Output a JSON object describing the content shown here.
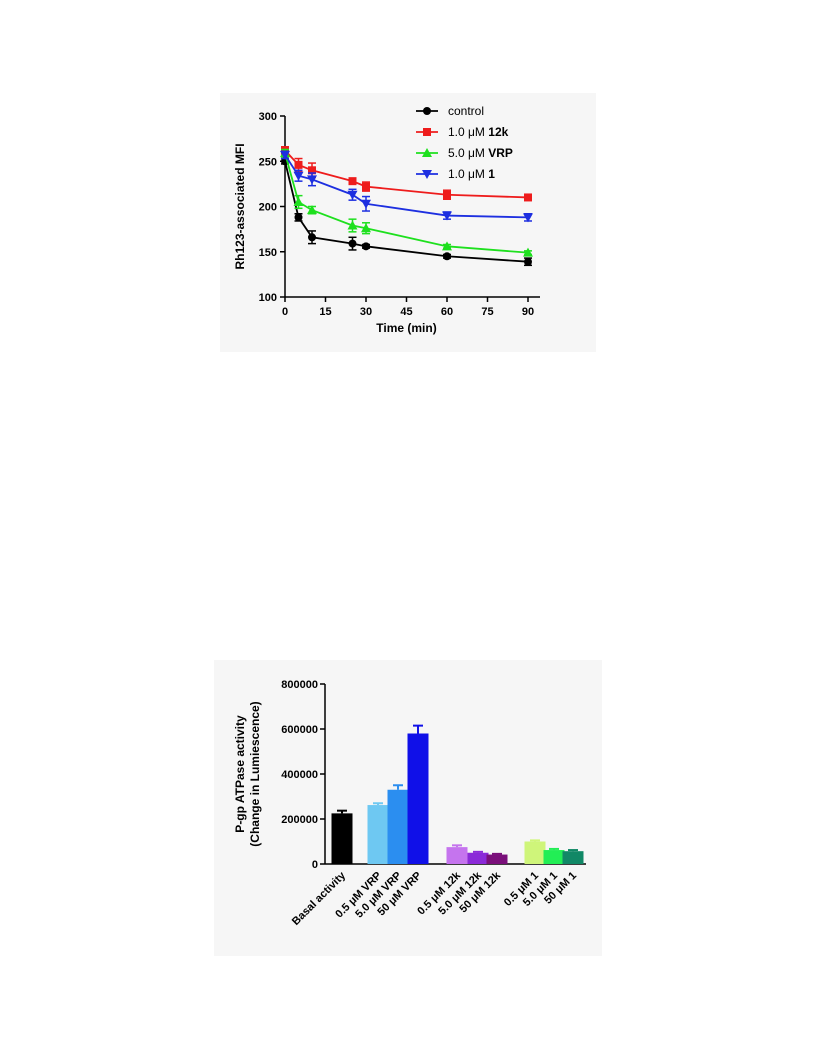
{
  "chart_data": [
    {
      "type": "line",
      "xlabel": "Time (min)",
      "ylabel": "Rh123-associated MFI",
      "xlim": [
        0,
        90
      ],
      "ylim": [
        100,
        300
      ],
      "xticks": [
        "0",
        "15",
        "30",
        "45",
        "60",
        "75",
        "90"
      ],
      "yticks": [
        "100",
        "150",
        "200",
        "250",
        "300"
      ],
      "grid": false,
      "legend_position": "top-right",
      "x": [
        0,
        5,
        10,
        25,
        30,
        60,
        90
      ],
      "series": [
        {
          "name": "control",
          "color": "#000000",
          "marker": "circle",
          "values": [
            250,
            188,
            166,
            159,
            156,
            145,
            139
          ],
          "errors": [
            3,
            4,
            7,
            7,
            2,
            2,
            4
          ]
        },
        {
          "name": "1.0 μM 12k",
          "name_prefix": "1.0 μM",
          "name_bold": "12k",
          "color": "#ee1c1c",
          "marker": "square",
          "values": [
            262,
            246,
            240,
            228,
            222,
            213,
            210
          ],
          "errors": [
            4,
            7,
            8,
            2,
            5,
            5,
            2
          ]
        },
        {
          "name": "5.0 μM VRP",
          "name_prefix": "5.0 μM",
          "name_bold": "VRP",
          "color": "#1ee01e",
          "marker": "triangle-up",
          "values": [
            259,
            205,
            196,
            179,
            176,
            156,
            149
          ],
          "errors": [
            4,
            7,
            4,
            7,
            6,
            2,
            2
          ]
        },
        {
          "name": "1.0 μM 1",
          "name_prefix": "1.0 μM",
          "name_bold": "1",
          "color": "#1d2fe0",
          "marker": "triangle-down",
          "values": [
            257,
            234,
            230,
            213,
            203,
            190,
            188
          ],
          "errors": [
            4,
            6,
            7,
            6,
            8,
            4,
            4
          ]
        }
      ]
    },
    {
      "type": "bar",
      "ylabel_lines": [
        "P-gp ATPase activity",
        "(Change in Lumiescence)"
      ],
      "ylim": [
        0,
        800000
      ],
      "yticks": [
        "0",
        "200000",
        "400000",
        "600000",
        "800000"
      ],
      "grid": false,
      "categories": [
        "Basal activity",
        "0.5 μM VRP",
        "5.0 μM VRP",
        "50 μM VRP",
        "0.5 μM 12k",
        "5.0 μM 12k",
        "50 μM 12k",
        "0.5 μM 1",
        "5.0 μM 1",
        "50 μM 1"
      ],
      "values": [
        225000,
        262000,
        330000,
        580000,
        75000,
        50000,
        42000,
        100000,
        62000,
        57000
      ],
      "errors": [
        12000,
        8000,
        20000,
        35000,
        8000,
        4000,
        3000,
        5000,
        5000,
        5000
      ],
      "colors": [
        "#000000",
        "#6ec8f2",
        "#2b8ef0",
        "#1010e8",
        "#c574ee",
        "#8b2ad8",
        "#7a0f7a",
        "#cff57a",
        "#22ee55",
        "#118866"
      ]
    }
  ]
}
